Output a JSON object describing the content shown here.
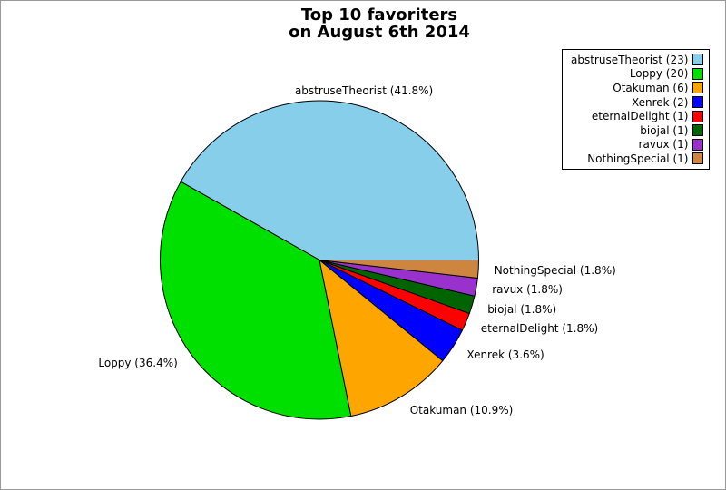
{
  "chart_data": {
    "type": "pie",
    "title": "Top 10 favoriters",
    "subtitle": "on August 6th 2014",
    "start_angle_deg": 0,
    "direction": "counterclockwise",
    "label_distance": 1.1,
    "legend_position": "top-right",
    "total_count": 55,
    "slices": [
      {
        "name": "abstruseTheorist",
        "count": 23,
        "percent": 41.8,
        "color": "#87CEEB",
        "legend_label": "abstruseTheorist (23)",
        "slice_label": "abstruseTheorist (41.8%)"
      },
      {
        "name": "Loppy",
        "count": 20,
        "percent": 36.4,
        "color": "#00E000",
        "legend_label": "Loppy (20)",
        "slice_label": "Loppy (36.4%)"
      },
      {
        "name": "Otakuman",
        "count": 6,
        "percent": 10.9,
        "color": "#FFA500",
        "legend_label": "Otakuman (6)",
        "slice_label": "Otakuman (10.9%)"
      },
      {
        "name": "Xenrek",
        "count": 2,
        "percent": 3.6,
        "color": "#0000FF",
        "legend_label": "Xenrek (2)",
        "slice_label": "Xenrek (3.6%)"
      },
      {
        "name": "eternalDelight",
        "count": 1,
        "percent": 1.8,
        "color": "#FF0000",
        "legend_label": "eternalDelight (1)",
        "slice_label": "eternalDelight (1.8%)"
      },
      {
        "name": "biojal",
        "count": 1,
        "percent": 1.8,
        "color": "#006400",
        "legend_label": "biojal (1)",
        "slice_label": "biojal (1.8%)"
      },
      {
        "name": "ravux",
        "count": 1,
        "percent": 1.8,
        "color": "#9932CC",
        "legend_label": "ravux (1)",
        "slice_label": "ravux (1.8%)"
      },
      {
        "name": "NothingSpecial",
        "count": 1,
        "percent": 1.8,
        "color": "#CD853F",
        "legend_label": "NothingSpecial (1)",
        "slice_label": "NothingSpecial (1.8%)"
      }
    ]
  }
}
